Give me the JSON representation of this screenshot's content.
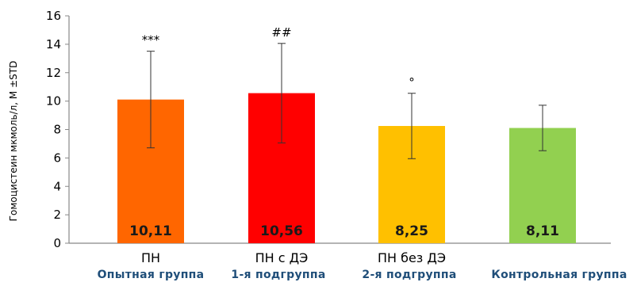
{
  "chart_data": {
    "type": "bar",
    "title": "",
    "xlabel": "",
    "ylabel": "Гомоцистеин мкмоль/л, M ±STD",
    "ylim": [
      0,
      16
    ],
    "yticks": [
      0,
      2,
      4,
      6,
      8,
      10,
      12,
      14,
      16
    ],
    "grid": false,
    "categories": [
      "ПН",
      "ПН с ДЭ",
      "ПН без ДЭ",
      ""
    ],
    "groups": [
      "Опытная группа",
      "1-я подгруппа",
      "2-я подгруппа",
      "Контрольная группа"
    ],
    "values": [
      10.11,
      10.56,
      8.25,
      8.11
    ],
    "value_labels": [
      "10,11",
      "10,56",
      "8,25",
      "8,11"
    ],
    "errors": [
      3.4,
      3.5,
      2.3,
      1.6
    ],
    "annotations": [
      "***",
      "##",
      "°",
      ""
    ],
    "colors": [
      "#ff6600",
      "#ff0000",
      "#ffc000",
      "#92d050"
    ]
  }
}
